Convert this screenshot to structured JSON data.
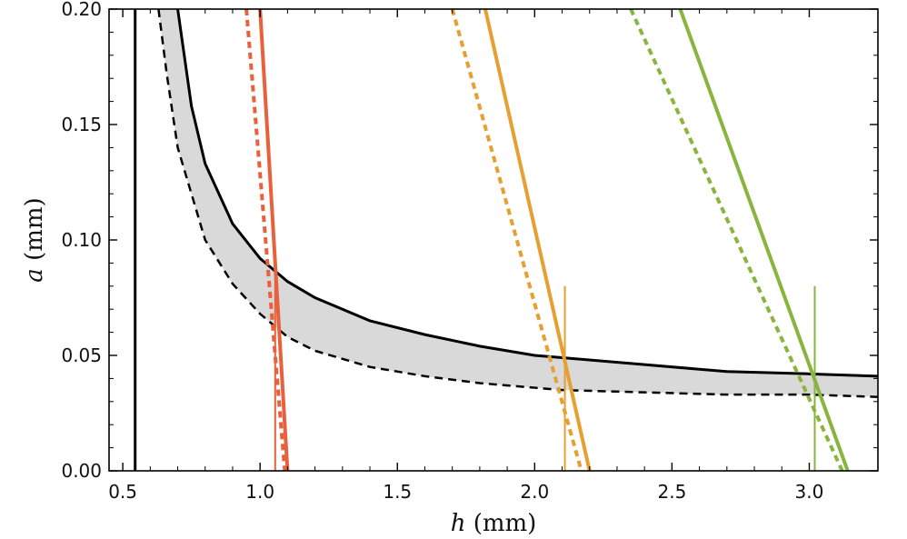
{
  "chart_data": {
    "type": "line",
    "title": "",
    "xlabel_var": "h",
    "xlabel_unit": "(mm)",
    "ylabel_var": "a",
    "ylabel_unit": "(mm)",
    "xlim": [
      0.45,
      3.25
    ],
    "ylim": [
      0.0,
      0.2
    ],
    "xticks": [
      0.5,
      1.0,
      1.5,
      2.0,
      2.5,
      3.0
    ],
    "xtick_labels": [
      "0.5",
      "1.0",
      "1.5",
      "2.0",
      "2.5",
      "3.0"
    ],
    "yticks": [
      0.0,
      0.05,
      0.1,
      0.15,
      0.2
    ],
    "ytick_labels": [
      "0.00",
      "0.05",
      "0.10",
      "0.15",
      "0.20"
    ],
    "grid": false,
    "band": {
      "fill": "#d9d9d9",
      "upper": {
        "style": "solid",
        "color": "#000000",
        "x": [
          0.7,
          0.75,
          0.8,
          0.9,
          1.0,
          1.05,
          1.1,
          1.2,
          1.4,
          1.6,
          1.8,
          2.0,
          2.1,
          2.4,
          2.7,
          3.0,
          3.25
        ],
        "y": [
          0.2,
          0.158,
          0.133,
          0.107,
          0.092,
          0.087,
          0.082,
          0.075,
          0.065,
          0.059,
          0.054,
          0.05,
          0.049,
          0.046,
          0.043,
          0.042,
          0.041
        ]
      },
      "lower": {
        "style": "dashed",
        "color": "#000000",
        "x": [
          0.63,
          0.66,
          0.7,
          0.8,
          0.9,
          1.0,
          1.1,
          1.2,
          1.4,
          1.6,
          1.8,
          2.0,
          2.1,
          2.4,
          2.7,
          3.0,
          3.25
        ],
        "y": [
          0.2,
          0.172,
          0.14,
          0.1,
          0.081,
          0.068,
          0.058,
          0.052,
          0.045,
          0.041,
          0.038,
          0.036,
          0.035,
          0.034,
          0.033,
          0.033,
          0.032
        ]
      }
    },
    "vertical_black": {
      "x": 0.545,
      "color": "#000000"
    },
    "series": [
      {
        "color": "#e8613c",
        "style": "solid",
        "x": [
          1.0,
          1.1
        ],
        "y": [
          0.2,
          0.0
        ]
      },
      {
        "color": "#e8613c",
        "style": "dashed",
        "x": [
          0.95,
          1.09
        ],
        "y": [
          0.2,
          0.0
        ]
      },
      {
        "color": "#e6a031",
        "style": "solid",
        "x": [
          1.82,
          2.2
        ],
        "y": [
          0.2,
          0.0
        ]
      },
      {
        "color": "#e6a031",
        "style": "dashed",
        "x": [
          1.7,
          2.17
        ],
        "y": [
          0.2,
          0.0
        ]
      },
      {
        "color": "#89b43d",
        "style": "solid",
        "x": [
          2.53,
          3.14
        ],
        "y": [
          0.2,
          0.0
        ]
      },
      {
        "color": "#89b43d",
        "style": "dashed",
        "x": [
          2.35,
          3.12
        ],
        "y": [
          0.2,
          0.0
        ]
      }
    ],
    "markers": [
      {
        "color": "#e8613c",
        "x": 1.055,
        "y_top": 0.085
      },
      {
        "color": "#e6a031",
        "x": 2.11,
        "y_top": 0.08
      },
      {
        "color": "#89b43d",
        "x": 3.02,
        "y_top": 0.08
      }
    ]
  }
}
